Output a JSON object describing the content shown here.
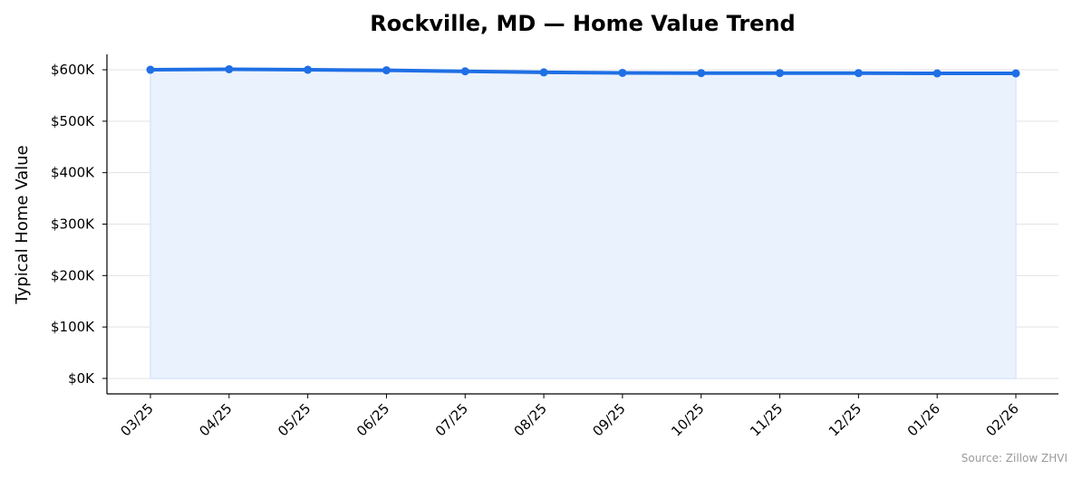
{
  "chart_data": {
    "type": "area",
    "title": "Rockville, MD — Home Value Trend",
    "xlabel": "",
    "ylabel": "Typical Home Value",
    "categories": [
      "03/25",
      "04/25",
      "05/25",
      "06/25",
      "07/25",
      "08/25",
      "09/25",
      "10/25",
      "11/25",
      "12/25",
      "01/26",
      "02/26"
    ],
    "series": [
      {
        "values": [
          600000,
          601000,
          600000,
          599000,
          597000,
          595000,
          594000,
          593500,
          593500,
          593500,
          593000,
          593000
        ]
      }
    ],
    "ylim": [
      -30000,
      630000
    ],
    "yticks": [
      0,
      100000,
      200000,
      300000,
      400000,
      500000,
      600000
    ],
    "ytick_labels": [
      "$0K",
      "$100K",
      "$200K",
      "$300K",
      "$400K",
      "$500K",
      "$600K"
    ],
    "grid": "horizontal",
    "legend": "none",
    "colors": {
      "line": "#1f6fe5",
      "fill": "#eaf2fd",
      "grid": "#e3e3e3",
      "axis": "#000000"
    },
    "source": "Source: Zillow ZHVI"
  }
}
